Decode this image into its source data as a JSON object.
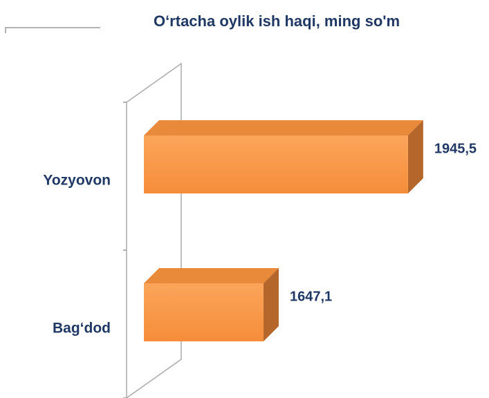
{
  "chart_data": {
    "type": "bar",
    "orientation": "horizontal",
    "title": "O‘rtacha oylik ish haqi, ming so'm",
    "categories": [
      "Yozyovon",
      "Bag‘dod"
    ],
    "values": [
      1945.5,
      1647.1
    ],
    "value_labels": [
      "1945,5",
      "1647,1"
    ],
    "color": "#f79646",
    "xlim": [
      1400,
      2000
    ]
  }
}
